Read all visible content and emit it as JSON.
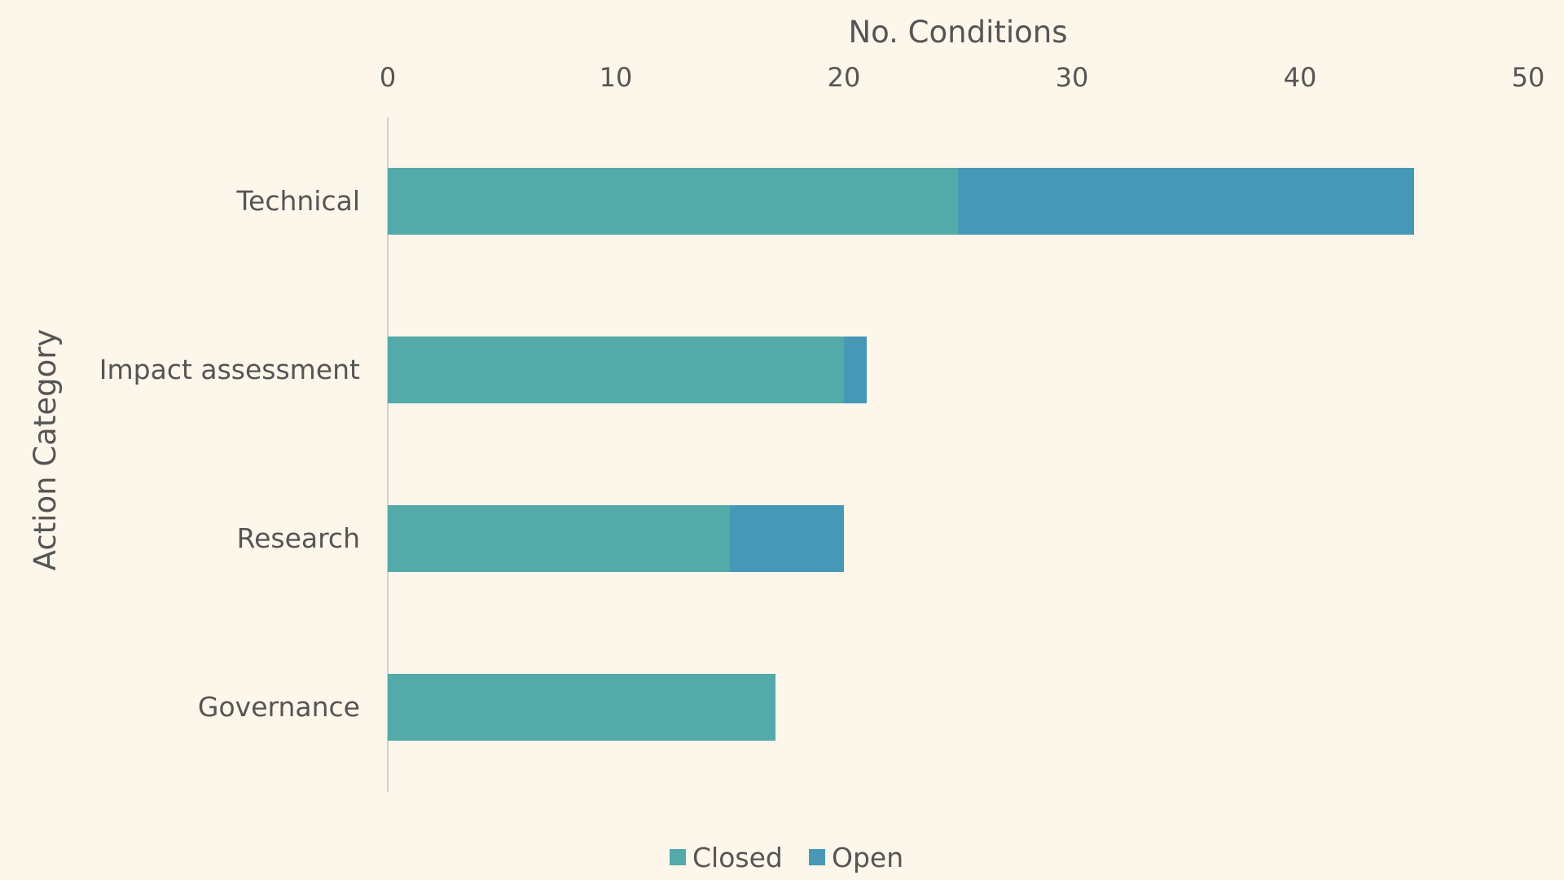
{
  "chart_data": {
    "type": "bar",
    "orientation": "horizontal",
    "stacked": true,
    "categories": [
      "Technical",
      "Impact assessment",
      "Research",
      "Governance"
    ],
    "series": [
      {
        "name": "Closed",
        "values": [
          25,
          20,
          15,
          17
        ],
        "color": "#53aaa9"
      },
      {
        "name": "Open",
        "values": [
          20,
          1,
          5,
          0
        ],
        "color": "#4698b7"
      }
    ],
    "xlabel": "No. Conditions",
    "ylabel": "Action Category",
    "xlim": [
      0,
      50
    ],
    "xticks": [
      "0",
      "10",
      "20",
      "30",
      "40",
      "50"
    ],
    "x_axis_position": "top",
    "grid": false,
    "legend_position": "bottom",
    "background_color": "#fdf6ea",
    "text_color": "#555555"
  }
}
